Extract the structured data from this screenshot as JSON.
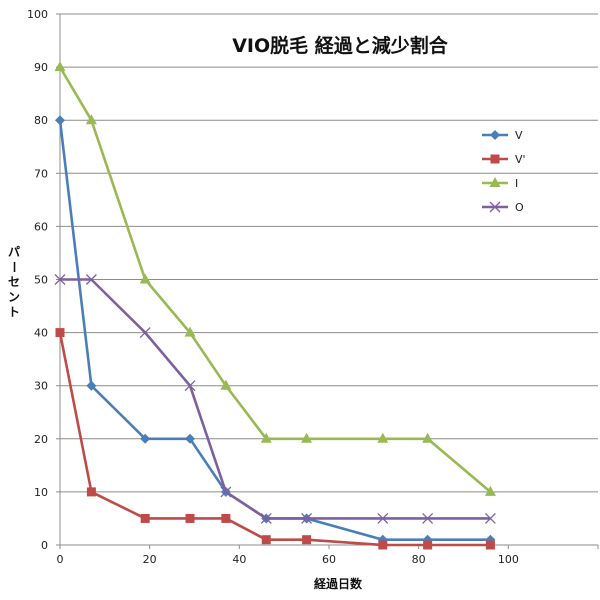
{
  "chart_data": {
    "type": "line",
    "title": "VIO脱毛 経過と減少割合",
    "xlabel": "経過日数",
    "ylabel": "パーセント",
    "xlim": [
      0,
      120
    ],
    "ylim": [
      0,
      100
    ],
    "x_ticks": [
      0,
      20,
      40,
      60,
      80,
      100
    ],
    "y_ticks": [
      0,
      10,
      20,
      30,
      40,
      50,
      60,
      70,
      80,
      90,
      100
    ],
    "grid": "horizontal",
    "legend_position": "right",
    "series": [
      {
        "name": "V",
        "color": "#4a7ebb",
        "marker": "diamond",
        "x": [
          0,
          7,
          19,
          29,
          37,
          46,
          55,
          72,
          82,
          96
        ],
        "y": [
          80,
          30,
          20,
          20,
          10,
          5,
          5,
          1,
          1,
          1
        ]
      },
      {
        "name": "V'",
        "color": "#be4b48",
        "marker": "square",
        "x": [
          0,
          7,
          19,
          29,
          37,
          46,
          55,
          72,
          82,
          96
        ],
        "y": [
          40,
          10,
          5,
          5,
          5,
          1,
          1,
          0,
          0,
          0
        ]
      },
      {
        "name": "I",
        "color": "#98b954",
        "marker": "triangle",
        "x": [
          0,
          7,
          19,
          29,
          37,
          46,
          55,
          72,
          82,
          96
        ],
        "y": [
          90,
          80,
          50,
          40,
          30,
          20,
          20,
          20,
          20,
          10
        ]
      },
      {
        "name": "O",
        "color": "#7d60a0",
        "marker": "x",
        "x": [
          0,
          7,
          19,
          29,
          37,
          46,
          55,
          72,
          82,
          96
        ],
        "y": [
          50,
          50,
          40,
          30,
          10,
          5,
          5,
          5,
          5,
          5
        ]
      }
    ]
  }
}
